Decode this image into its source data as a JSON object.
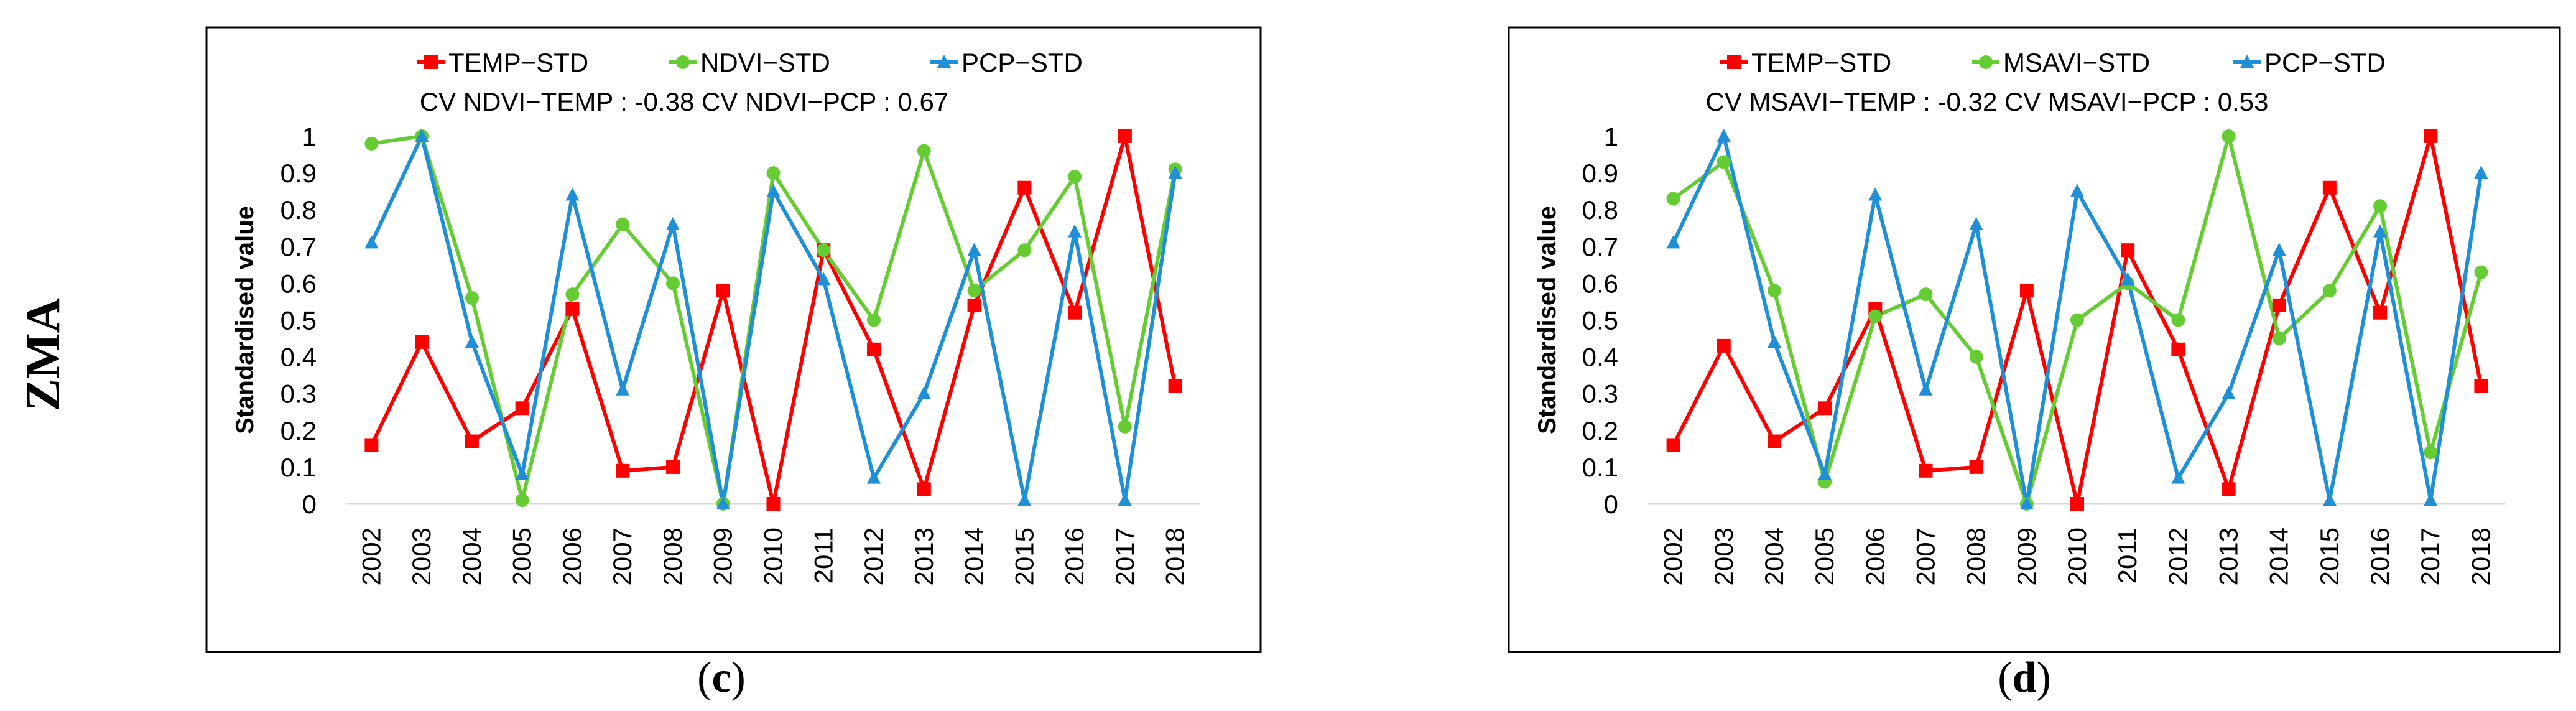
{
  "row_label": "ZMA",
  "series_colors": {
    "TEMP-STD": "#ff0000",
    "NDVI-STD": "#66cc33",
    "MSAVI-STD": "#66cc33",
    "PCP-STD": "#1f8fd8"
  },
  "chart_data": [
    {
      "id": "c",
      "type": "line",
      "panel_label_open": "(",
      "panel_label_letter": "c",
      "panel_label_close": ")",
      "cv_text": "CV NDVI−TEMP : -0.38   CV NDVI−PCP : 0.67",
      "xlabel": "",
      "ylabel": "Standardised value",
      "ylim": [
        0,
        1
      ],
      "yticks": [
        "0",
        "0.1",
        "0.2",
        "0.3",
        "0.4",
        "0.5",
        "0.6",
        "0.7",
        "0.8",
        "0.9",
        "1"
      ],
      "categories": [
        "2002",
        "2003",
        "2004",
        "2005",
        "2006",
        "2007",
        "2008",
        "2009",
        "2010",
        "2011",
        "2012",
        "2013",
        "2014",
        "2015",
        "2016",
        "2017",
        "2018"
      ],
      "series": [
        {
          "name": "TEMP−STD",
          "key": "TEMP-STD",
          "marker": "square",
          "values": [
            0.16,
            0.44,
            0.17,
            0.26,
            0.53,
            0.09,
            0.1,
            0.58,
            0.0,
            0.69,
            0.42,
            0.04,
            0.54,
            0.86,
            0.52,
            1.0,
            0.32
          ]
        },
        {
          "name": "NDVI−STD",
          "key": "NDVI-STD",
          "marker": "circle",
          "values": [
            0.98,
            1.0,
            0.56,
            0.01,
            0.57,
            0.76,
            0.6,
            0.0,
            0.9,
            0.69,
            0.5,
            0.96,
            0.58,
            0.69,
            0.89,
            0.21,
            0.91
          ]
        },
        {
          "name": "PCP−STD",
          "key": "PCP-STD",
          "marker": "triangle",
          "values": [
            0.71,
            1.0,
            0.44,
            0.08,
            0.84,
            0.31,
            0.76,
            0.0,
            0.85,
            0.61,
            0.07,
            0.3,
            0.69,
            0.01,
            0.74,
            0.01,
            0.9
          ]
        }
      ]
    },
    {
      "id": "d",
      "type": "line",
      "panel_label_open": "(",
      "panel_label_letter": "d",
      "panel_label_close": ")",
      "cv_text": "CV MSAVI−TEMP : -0.32  CV MSAVI−PCP : 0.53",
      "xlabel": "",
      "ylabel": "Standardised value",
      "ylim": [
        0,
        1
      ],
      "yticks": [
        "0",
        "0.1",
        "0.2",
        "0.3",
        "0.4",
        "0.5",
        "0.6",
        "0.7",
        "0.8",
        "0.9",
        "1"
      ],
      "categories": [
        "2002",
        "2003",
        "2004",
        "2005",
        "2006",
        "2007",
        "2008",
        "2009",
        "2010",
        "2011",
        "2012",
        "2013",
        "2014",
        "2015",
        "2016",
        "2017",
        "2018"
      ],
      "series": [
        {
          "name": "TEMP−STD",
          "key": "TEMP-STD",
          "marker": "square",
          "values": [
            0.16,
            0.43,
            0.17,
            0.26,
            0.53,
            0.09,
            0.1,
            0.58,
            0.0,
            0.69,
            0.42,
            0.04,
            0.54,
            0.86,
            0.52,
            1.0,
            0.32
          ]
        },
        {
          "name": "MSAVI−STD",
          "key": "MSAVI-STD",
          "marker": "circle",
          "values": [
            0.83,
            0.93,
            0.58,
            0.06,
            0.51,
            0.57,
            0.4,
            0.0,
            0.5,
            0.6,
            0.5,
            1.0,
            0.45,
            0.58,
            0.81,
            0.14,
            0.63
          ]
        },
        {
          "name": "PCP−STD",
          "key": "PCP-STD",
          "marker": "triangle",
          "values": [
            0.71,
            1.0,
            0.44,
            0.08,
            0.84,
            0.31,
            0.76,
            0.0,
            0.85,
            0.61,
            0.07,
            0.3,
            0.69,
            0.01,
            0.74,
            0.01,
            0.9
          ]
        }
      ]
    }
  ]
}
